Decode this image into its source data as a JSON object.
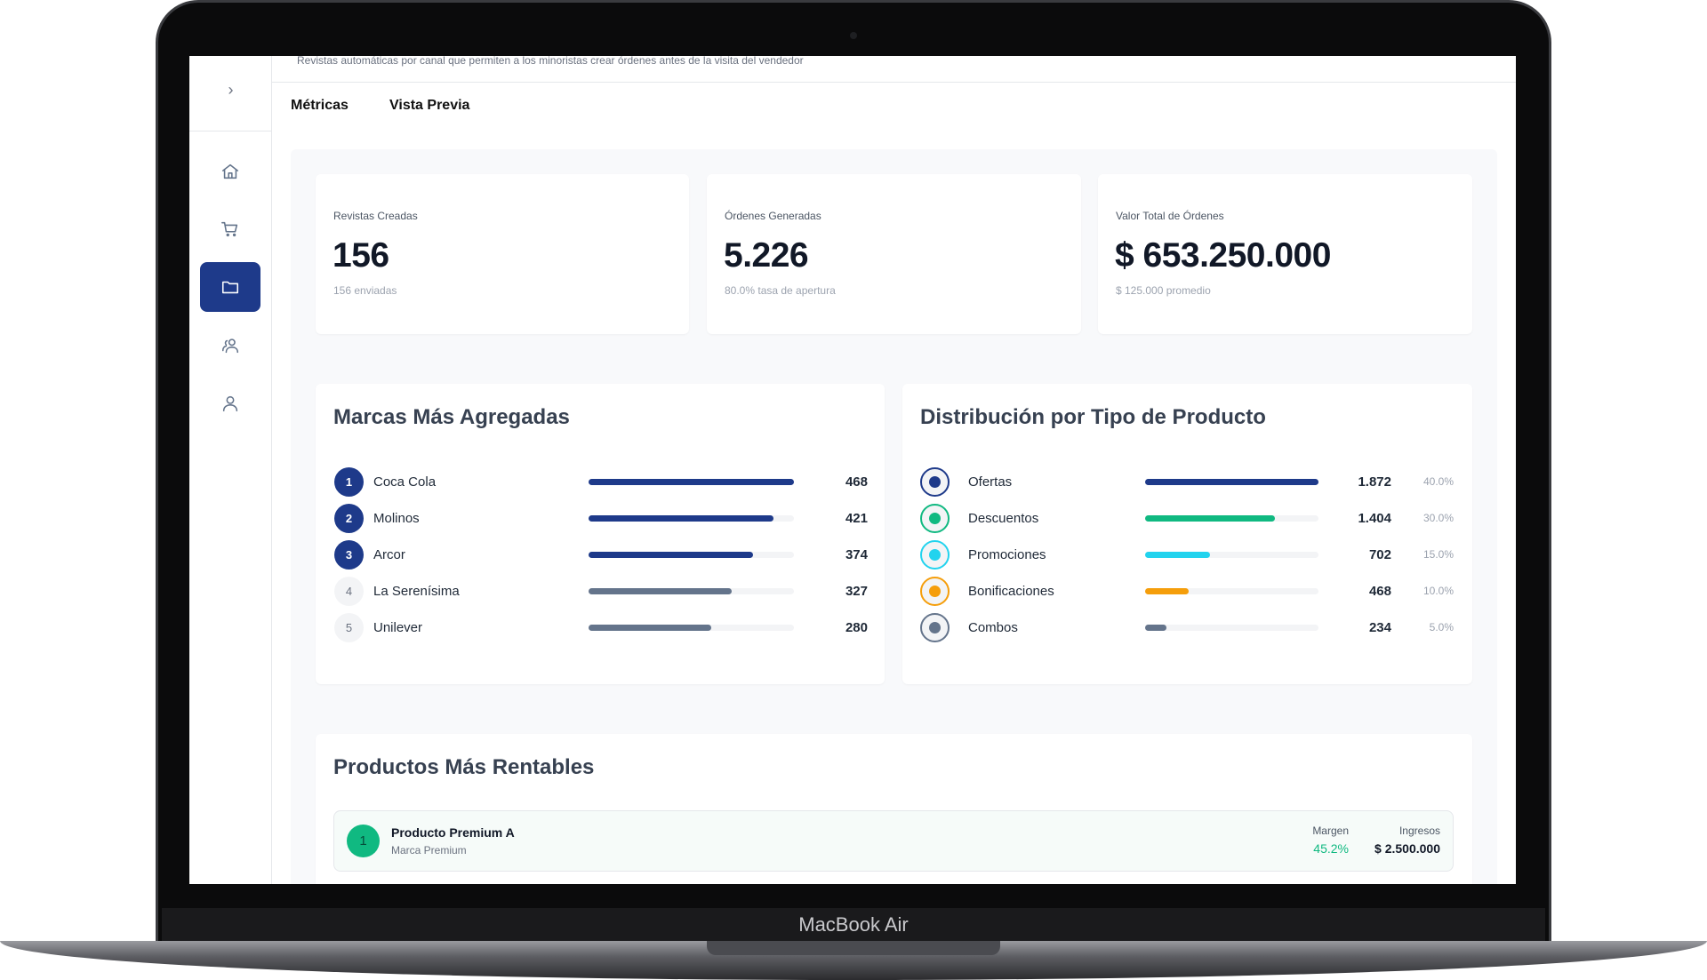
{
  "device": {
    "label": "MacBook Air"
  },
  "header": {
    "subtitle": "Revistas automáticas por canal que permiten a los minoristas crear órdenes antes de la visita del vendedor",
    "tabs": [
      {
        "label": "Métricas"
      },
      {
        "label": "Vista Previa"
      }
    ]
  },
  "sidebar": {
    "items": [
      {
        "icon": "home-icon"
      },
      {
        "icon": "cart-icon"
      },
      {
        "icon": "folder-icon",
        "active": true
      },
      {
        "icon": "users-icon"
      },
      {
        "icon": "user-icon"
      }
    ]
  },
  "kpis": [
    {
      "label": "Revistas Creadas",
      "value": "156",
      "sub": "156 enviadas"
    },
    {
      "label": "Órdenes Generadas",
      "value": "5.226",
      "sub": "80.0% tasa de apertura"
    },
    {
      "label": "Valor Total de Órdenes",
      "value": "$ 653.250.000",
      "sub": "$ 125.000 promedio"
    }
  ],
  "brands": {
    "title": "Marcas Más Agregadas",
    "items": [
      {
        "rank": "1",
        "name": "Coca Cola",
        "value": "468",
        "n": 468
      },
      {
        "rank": "2",
        "name": "Molinos",
        "value": "421",
        "n": 421
      },
      {
        "rank": "3",
        "name": "Arcor",
        "value": "374",
        "n": 374
      },
      {
        "rank": "4",
        "name": "La Serenísima",
        "value": "327",
        "n": 327
      },
      {
        "rank": "5",
        "name": "Unilever",
        "value": "280",
        "n": 280
      }
    ]
  },
  "types": {
    "title": "Distribución por Tipo de Producto",
    "items": [
      {
        "name": "Ofertas",
        "value": "1.872",
        "pct": "40.0%",
        "share": 40,
        "color": "#1e3a8a"
      },
      {
        "name": "Descuentos",
        "value": "1.404",
        "pct": "30.0%",
        "share": 30,
        "color": "#10b981"
      },
      {
        "name": "Promociones",
        "value": "702",
        "pct": "15.0%",
        "share": 15,
        "color": "#22d3ee"
      },
      {
        "name": "Bonificaciones",
        "value": "468",
        "pct": "10.0%",
        "share": 10,
        "color": "#f59e0b"
      },
      {
        "name": "Combos",
        "value": "234",
        "pct": "5.0%",
        "share": 5,
        "color": "#64748b"
      }
    ]
  },
  "products": {
    "title": "Productos Más Rentables",
    "margin_label": "Margen",
    "revenue_label": "Ingresos",
    "items": [
      {
        "rank": "1",
        "name": "Producto Premium A",
        "brand": "Marca Premium",
        "margin": "45.2%",
        "revenue": "$ 2.500.000"
      }
    ]
  },
  "colors": {
    "primary": "#1e3a8a",
    "muted_bar": "#64748b",
    "success": "#10b981"
  }
}
